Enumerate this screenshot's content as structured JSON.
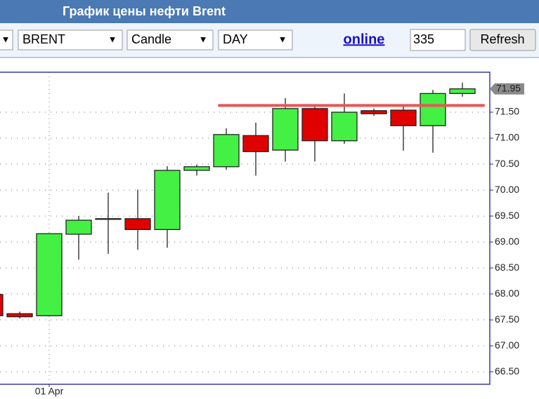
{
  "header": {
    "title": "График цены нефти Brent"
  },
  "toolbar": {
    "selects": [
      "BRENT",
      "Candle",
      "DAY"
    ],
    "link": "online",
    "input": "335",
    "button": "Refresh"
  },
  "chart_data": {
    "type": "candlestick",
    "categories": [
      null,
      null,
      "01 Apr",
      null,
      null,
      null,
      null,
      null,
      null,
      null,
      null,
      null,
      null,
      null,
      null,
      null,
      null
    ],
    "open": [
      67.99,
      67.62,
      67.58,
      69.15,
      69.45,
      69.45,
      69.24,
      70.38,
      70.45,
      71.05,
      70.77,
      71.57,
      70.95,
      71.53,
      71.54,
      71.24,
      71.86
    ],
    "high": [
      68.05,
      67.66,
      69.16,
      69.5,
      69.95,
      70.01,
      70.46,
      70.49,
      71.19,
      71.3,
      71.77,
      71.64,
      71.86,
      71.57,
      71.64,
      71.93,
      72.07
    ],
    "low": [
      67.5,
      67.53,
      67.58,
      68.66,
      68.77,
      68.85,
      68.89,
      70.28,
      70.39,
      70.28,
      70.55,
      70.55,
      70.89,
      71.43,
      70.76,
      70.72,
      71.8
    ],
    "close": [
      67.58,
      67.56,
      69.16,
      69.42,
      69.45,
      69.24,
      70.38,
      70.45,
      71.07,
      70.74,
      71.57,
      70.95,
      71.5,
      71.47,
      71.24,
      71.86,
      71.95
    ],
    "up_color": "#44f044",
    "down_color": "#e00000",
    "ylim": [
      66.26,
      72.27
    ],
    "yticks": [
      {
        "value": 66.5,
        "label": "66.50"
      },
      {
        "value": 67,
        "label": "67.00"
      },
      {
        "value": 67.5,
        "label": "67.50"
      },
      {
        "value": 68,
        "label": "68.00"
      },
      {
        "value": 68.5,
        "label": "68.50"
      },
      {
        "value": 69,
        "label": "69.00"
      },
      {
        "value": 69.5,
        "label": "69.50"
      },
      {
        "value": 70,
        "label": "70.00"
      },
      {
        "value": 70.5,
        "label": "70.50"
      },
      {
        "value": 71,
        "label": "71.00"
      },
      {
        "value": 71.5,
        "label": "71.50"
      }
    ],
    "grid": true,
    "last_price": {
      "value": 71.95,
      "label": "71.95"
    },
    "level_line": {
      "value": 71.63,
      "color": "#e85555"
    }
  }
}
